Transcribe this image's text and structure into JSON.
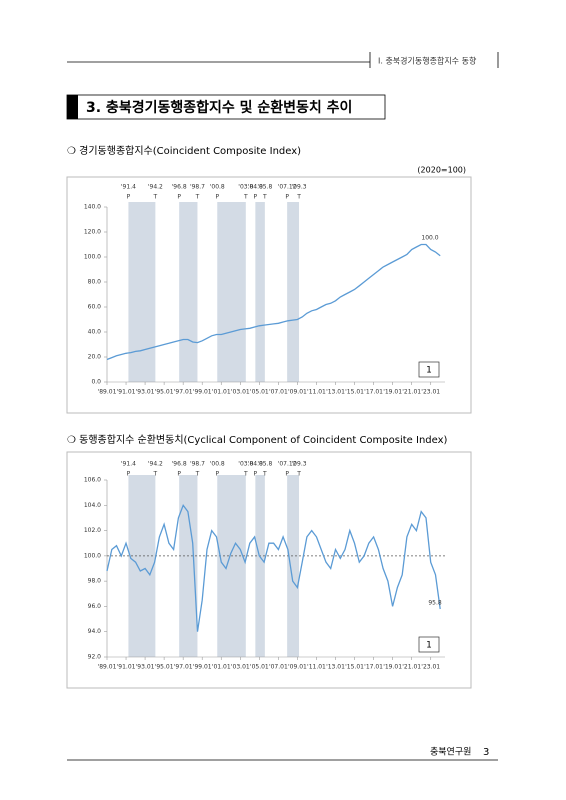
{
  "header": "Ⅰ. 충북경기동행종합지수 동향",
  "section_title": "3. 충북경기동행종합지수 및 순환변동치 추이",
  "footer": {
    "org": "충북연구원",
    "page": "3"
  },
  "chart_data": [
    {
      "type": "line",
      "title": "❍ 경기동행종합지수(Coincident Composite Index)",
      "unit": "(2020=100)",
      "color": "#5b9bd5",
      "panel_label": "1",
      "annotation": "100.0",
      "xlim": [
        1989,
        2024.5
      ],
      "ylim": [
        0,
        140
      ],
      "yticks": [
        {
          "value": 0,
          "label": "0.0"
        },
        {
          "value": 20,
          "label": "20.0"
        },
        {
          "value": 40,
          "label": "40.0"
        },
        {
          "value": 60,
          "label": "60.0"
        },
        {
          "value": 80,
          "label": "80.0"
        },
        {
          "value": 100,
          "label": "100.0"
        },
        {
          "value": 120,
          "label": "120.0"
        },
        {
          "value": 140,
          "label": "140.0"
        }
      ],
      "xticks": [
        {
          "value": 1989,
          "label": "'89.01"
        },
        {
          "value": 1991,
          "label": "'91.01"
        },
        {
          "value": 1993,
          "label": "'93.01"
        },
        {
          "value": 1995,
          "label": "'95.01"
        },
        {
          "value": 1997,
          "label": "'97.01"
        },
        {
          "value": 1999,
          "label": "'99.01"
        },
        {
          "value": 2001,
          "label": "'01.01"
        },
        {
          "value": 2003,
          "label": "'03.01"
        },
        {
          "value": 2005,
          "label": "'05.01"
        },
        {
          "value": 2007,
          "label": "'07.01"
        },
        {
          "value": 2009,
          "label": "'09.01"
        },
        {
          "value": 2011,
          "label": "'11.01"
        },
        {
          "value": 2013,
          "label": "'13.01"
        },
        {
          "value": 2015,
          "label": "'15.01"
        },
        {
          "value": 2017,
          "label": "'17.01"
        },
        {
          "value": 2019,
          "label": "'19.01"
        },
        {
          "value": 2021,
          "label": "'21.01"
        },
        {
          "value": 2023,
          "label": "'23.01"
        }
      ],
      "turning_points": [
        {
          "date": "'91.4",
          "phase": "P",
          "x": 1991.25
        },
        {
          "date": "'94.2",
          "phase": "T",
          "x": 1994.08
        },
        {
          "date": "'96.8",
          "phase": "P",
          "x": 1996.58
        },
        {
          "date": "'98.7",
          "phase": "T",
          "x": 1998.5
        },
        {
          "date": "'00.8",
          "phase": "P",
          "x": 2000.58
        },
        {
          "date": "'03.8",
          "phase": "T",
          "x": 2003.58
        },
        {
          "date": "'04.8",
          "phase": "P",
          "x": 2004.58
        },
        {
          "date": "'05.8",
          "phase": "T",
          "x": 2005.58
        },
        {
          "date": "'07.12",
          "phase": "P",
          "x": 2007.92
        },
        {
          "date": "'09.3",
          "phase": "T",
          "x": 2009.17
        }
      ],
      "x": [
        1989,
        1989.5,
        1990,
        1990.5,
        1991,
        1991.5,
        1992,
        1992.5,
        1993,
        1993.5,
        1994,
        1994.5,
        1995,
        1995.5,
        1996,
        1996.5,
        1997,
        1997.5,
        1998,
        1998.5,
        1999,
        1999.5,
        2000,
        2000.5,
        2001,
        2001.5,
        2002,
        2002.5,
        2003,
        2003.5,
        2004,
        2004.5,
        2005,
        2005.5,
        2006,
        2006.5,
        2007,
        2007.5,
        2008,
        2008.5,
        2009,
        2009.5,
        2010,
        2010.5,
        2011,
        2011.5,
        2012,
        2012.5,
        2013,
        2013.5,
        2014,
        2014.5,
        2015,
        2015.5,
        2016,
        2016.5,
        2017,
        2017.5,
        2018,
        2018.5,
        2019,
        2019.5,
        2020,
        2020.5,
        2021,
        2021.5,
        2022,
        2022.5,
        2023,
        2023.5,
        2024
      ],
      "values": [
        18,
        19.5,
        21,
        22,
        23,
        23.5,
        24.5,
        25,
        26,
        27,
        28,
        29,
        30,
        31,
        32,
        33,
        34,
        34,
        32,
        31.5,
        33,
        35,
        37,
        38,
        38,
        39,
        40,
        41,
        42,
        42.5,
        43,
        44,
        45,
        45.5,
        46,
        46.5,
        47,
        48,
        49,
        49.5,
        50,
        52,
        55,
        57,
        58,
        60,
        62,
        63,
        65,
        68,
        70,
        72,
        74,
        77,
        80,
        83,
        86,
        89,
        92,
        94,
        96,
        98,
        100,
        102,
        106,
        108,
        110,
        110,
        106,
        104,
        101
      ]
    },
    {
      "type": "line",
      "title": "❍ 동행종합지수 순환변동치(Cyclical Component of Coincident Composite Index)",
      "color": "#5b9bd5",
      "panel_label": "1",
      "annotation": "95.8",
      "reference_line": 100,
      "xlim": [
        1989,
        2024.5
      ],
      "ylim": [
        92,
        106
      ],
      "yticks": [
        {
          "value": 92,
          "label": "92.0"
        },
        {
          "value": 94,
          "label": "94.0"
        },
        {
          "value": 96,
          "label": "96.0"
        },
        {
          "value": 98,
          "label": "98.0"
        },
        {
          "value": 100,
          "label": "100.0"
        },
        {
          "value": 102,
          "label": "102.0"
        },
        {
          "value": 104,
          "label": "104.0"
        },
        {
          "value": 106,
          "label": "106.0"
        }
      ],
      "xticks": [
        {
          "value": 1989,
          "label": "'89.01"
        },
        {
          "value": 1991,
          "label": "'91.01"
        },
        {
          "value": 1993,
          "label": "'93.01"
        },
        {
          "value": 1995,
          "label": "'95.01"
        },
        {
          "value": 1997,
          "label": "'97.01"
        },
        {
          "value": 1999,
          "label": "'99.01"
        },
        {
          "value": 2001,
          "label": "'01.01"
        },
        {
          "value": 2003,
          "label": "'03.01"
        },
        {
          "value": 2005,
          "label": "'05.01"
        },
        {
          "value": 2007,
          "label": "'07.01"
        },
        {
          "value": 2009,
          "label": "'09.01"
        },
        {
          "value": 2011,
          "label": "'11.01"
        },
        {
          "value": 2013,
          "label": "'13.01"
        },
        {
          "value": 2015,
          "label": "'15.01"
        },
        {
          "value": 2017,
          "label": "'17.01"
        },
        {
          "value": 2019,
          "label": "'19.01"
        },
        {
          "value": 2021,
          "label": "'21.01"
        },
        {
          "value": 2023,
          "label": "'23.01"
        }
      ],
      "turning_points": [
        {
          "date": "'91.4",
          "phase": "P",
          "x": 1991.25
        },
        {
          "date": "'94.2",
          "phase": "T",
          "x": 1994.08
        },
        {
          "date": "'96.8",
          "phase": "P",
          "x": 1996.58
        },
        {
          "date": "'98.7",
          "phase": "T",
          "x": 1998.5
        },
        {
          "date": "'00.8",
          "phase": "P",
          "x": 2000.58
        },
        {
          "date": "'03.8",
          "phase": "T",
          "x": 2003.58
        },
        {
          "date": "'04.8",
          "phase": "P",
          "x": 2004.58
        },
        {
          "date": "'05.8",
          "phase": "T",
          "x": 2005.58
        },
        {
          "date": "'07.12",
          "phase": "P",
          "x": 2007.92
        },
        {
          "date": "'09.3",
          "phase": "T",
          "x": 2009.17
        }
      ],
      "x": [
        1989,
        1989.5,
        1990,
        1990.5,
        1991,
        1991.5,
        1992,
        1992.5,
        1993,
        1993.5,
        1994,
        1994.5,
        1995,
        1995.5,
        1996,
        1996.5,
        1997,
        1997.5,
        1998,
        1998.5,
        1999,
        1999.5,
        2000,
        2000.5,
        2001,
        2001.5,
        2002,
        2002.5,
        2003,
        2003.5,
        2004,
        2004.5,
        2005,
        2005.5,
        2006,
        2006.5,
        2007,
        2007.5,
        2008,
        2008.5,
        2009,
        2009.5,
        2010,
        2010.5,
        2011,
        2011.5,
        2012,
        2012.5,
        2013,
        2013.5,
        2014,
        2014.5,
        2015,
        2015.5,
        2016,
        2016.5,
        2017,
        2017.5,
        2018,
        2018.5,
        2019,
        2019.5,
        2020,
        2020.5,
        2021,
        2021.5,
        2022,
        2022.5,
        2023,
        2023.5,
        2024
      ],
      "values": [
        98.8,
        100.5,
        100.8,
        100,
        101,
        99.8,
        99.5,
        98.8,
        99,
        98.5,
        99.5,
        101.5,
        102.5,
        101,
        100.5,
        103,
        104,
        103.5,
        101,
        94,
        96.5,
        100.5,
        102,
        101.5,
        99.5,
        99,
        100.2,
        101,
        100.5,
        99.5,
        101,
        101.5,
        100,
        99.5,
        101,
        101,
        100.5,
        101.5,
        100.5,
        98,
        97.5,
        99.5,
        101.5,
        102,
        101.5,
        100.5,
        99.5,
        99,
        100.5,
        99.8,
        100.5,
        102,
        101,
        99.5,
        100,
        101,
        101.5,
        100.5,
        99,
        98,
        96,
        97.5,
        98.5,
        101.5,
        102.5,
        102,
        103.5,
        103,
        99.5,
        98.5,
        95.8
      ]
    }
  ]
}
